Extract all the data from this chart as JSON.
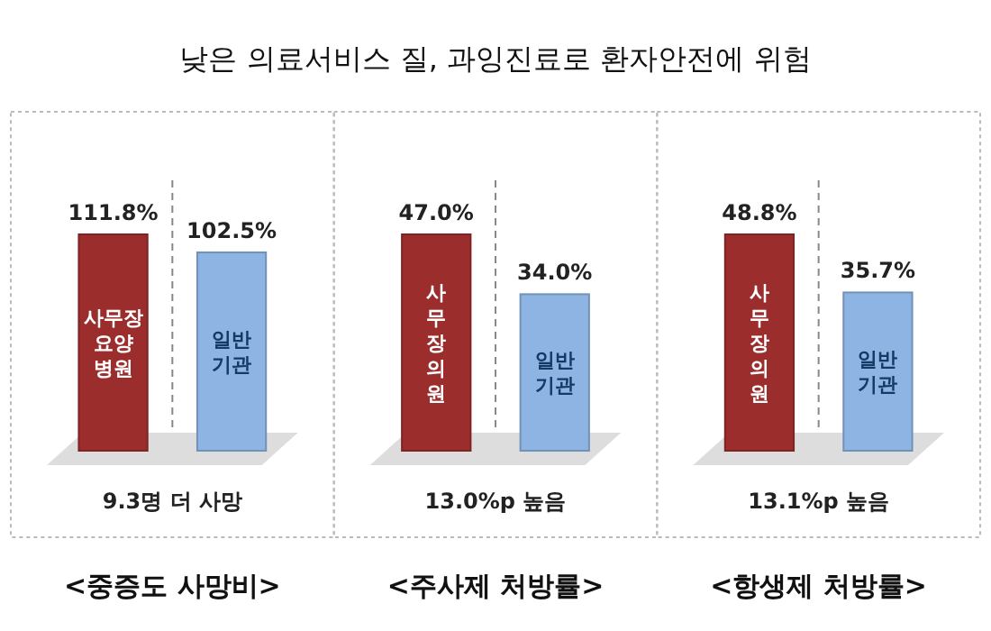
{
  "chart_data": [
    {
      "type": "bar",
      "title": "낮은 의료서비스 질, 과잉진료로 환자안전에 위험",
      "categories": [
        "사무장\n요양\n병원",
        "일반\n기관"
      ],
      "values": [
        111.8,
        102.5
      ],
      "value_labels": [
        "111.8%",
        "102.5%"
      ],
      "colors": [
        "#9b2d2d",
        "#8db4e2"
      ],
      "xlabel": "<중증도 사망비>",
      "annotations": [
        "9.3명 더 사망"
      ]
    },
    {
      "type": "bar",
      "categories": [
        "사\n무\n장\n의\n원",
        "일반\n기관"
      ],
      "values": [
        47.0,
        34.0
      ],
      "value_labels": [
        "47.0%",
        "34.0%"
      ],
      "colors": [
        "#9b2d2d",
        "#8db4e2"
      ],
      "xlabel": "<주사제 처방률>",
      "annotations": [
        "13.0%p 높음"
      ]
    },
    {
      "type": "bar",
      "categories": [
        "사\n무\n장\n의\n원",
        "일반\n기관"
      ],
      "values": [
        48.8,
        35.7
      ],
      "value_labels": [
        "48.8%",
        "35.7%"
      ],
      "colors": [
        "#9b2d2d",
        "#8db4e2"
      ],
      "xlabel": "<항생제 처방률>",
      "annotations": [
        "13.1%p 높음"
      ]
    }
  ]
}
